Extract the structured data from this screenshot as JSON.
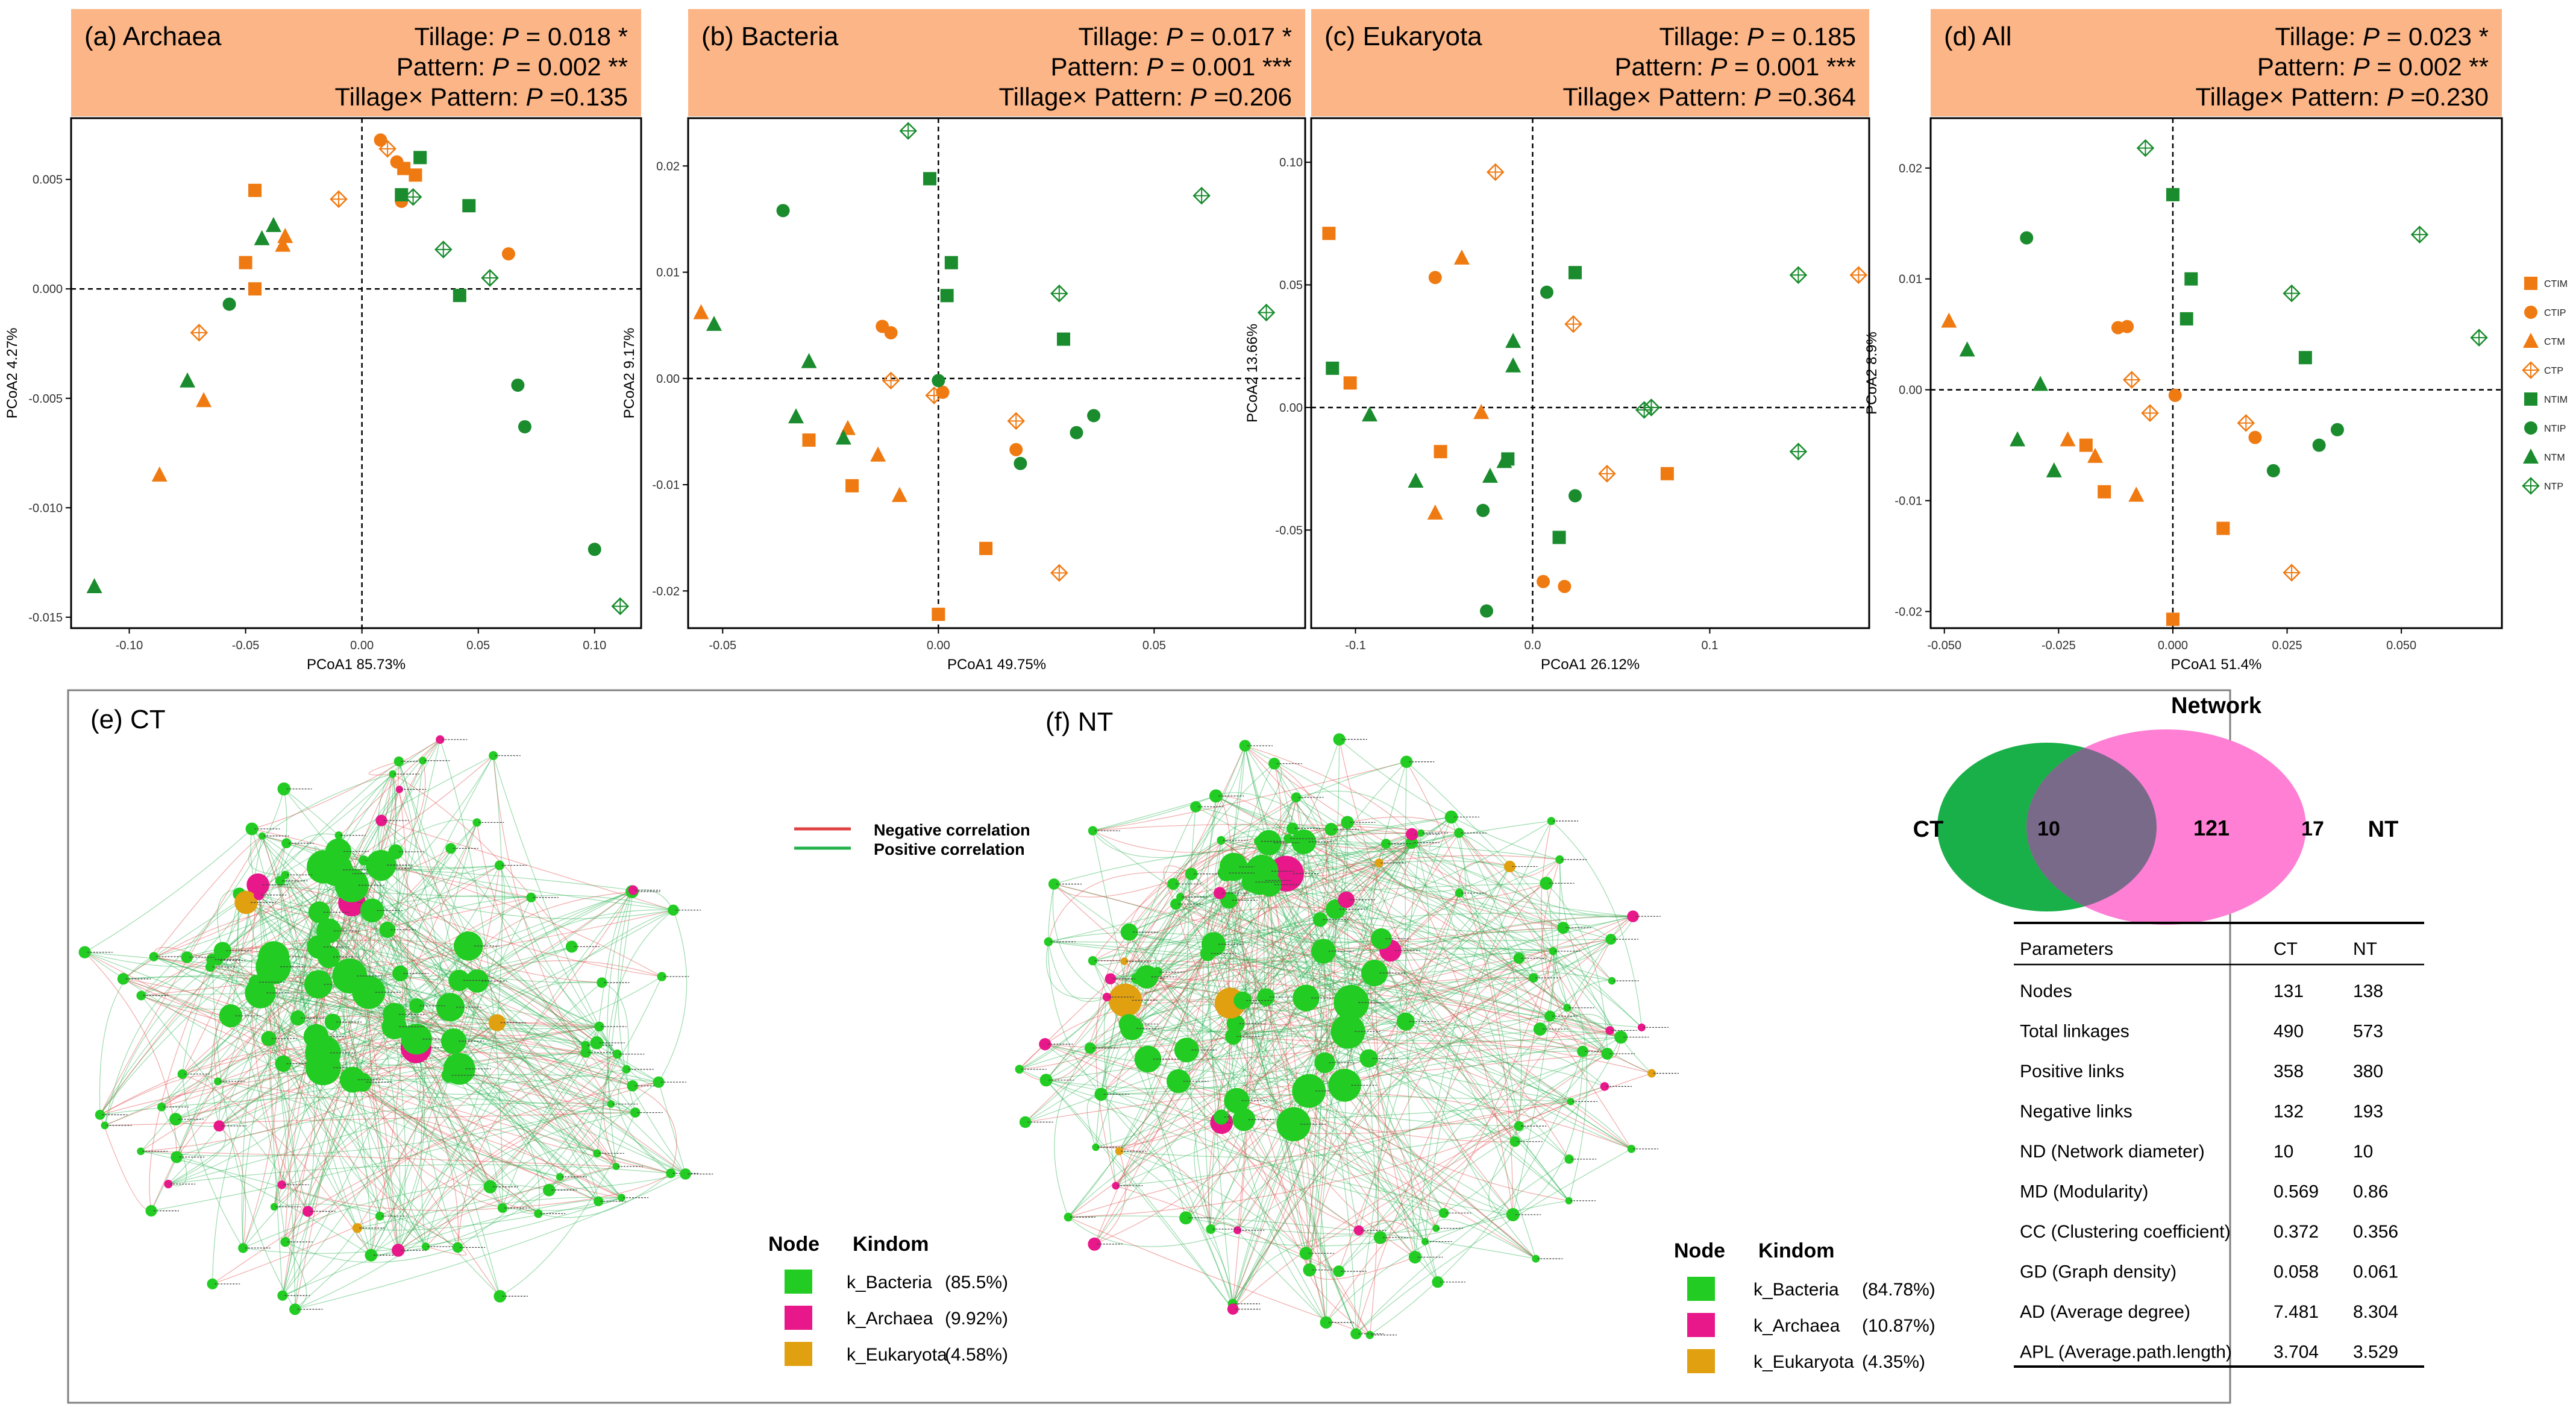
{
  "colors": {
    "ct": "#f07a12",
    "nt": "#1a8c2e",
    "header_bg": "#fcb586",
    "bacteria_node": "#22cc22",
    "archaea_node": "#e8178a",
    "eukaryota_node": "#e0a010",
    "neg_edge": "#e04040",
    "pos_edge": "#22b04a",
    "venn_ct": "#19b04a",
    "venn_nt": "#ff7fd4",
    "venn_overlap": "#7a6a8a"
  },
  "pcoa_legend": [
    "CTIM",
    "CTIP",
    "CTM",
    "CTP",
    "NTIM",
    "NTIP",
    "NTM",
    "NTP"
  ],
  "chart_data": [
    {
      "type": "scatter",
      "panel": "(a) Archaea",
      "stats": [
        "Tillage: P = 0.018 *",
        "Pattern: P = 0.002 **",
        "Tillage× Pattern: P =0.135"
      ],
      "xlabel": "PCoA1 85.73%",
      "ylabel": "PCoA2 4.27%",
      "xlim": [
        -0.125,
        0.12
      ],
      "ylim": [
        -0.0155,
        0.0078
      ],
      "xticks": [
        -0.1,
        -0.05,
        0.0,
        0.05,
        0.1
      ],
      "xtick_labels": [
        "-0.10",
        "-0.05",
        "0.00",
        "0.05",
        "0.10"
      ],
      "yticks": [
        -0.015,
        -0.01,
        -0.005,
        0.0,
        0.005
      ],
      "ytick_labels": [
        "-0.015",
        "-0.010",
        "-0.005",
        "0.000",
        "0.005"
      ],
      "points": [
        {
          "g": "CTIM",
          "x": -0.046,
          "y": 0.0045
        },
        {
          "g": "CTIM",
          "x": -0.05,
          "y": 0.0012
        },
        {
          "g": "CTIM",
          "x": -0.046,
          "y": 0.0
        },
        {
          "g": "CTIM",
          "x": 0.018,
          "y": 0.0055
        },
        {
          "g": "CTIM",
          "x": 0.023,
          "y": 0.0052
        },
        {
          "g": "CTIP",
          "x": 0.008,
          "y": 0.0068
        },
        {
          "g": "CTIP",
          "x": 0.015,
          "y": 0.0058
        },
        {
          "g": "CTIP",
          "x": 0.017,
          "y": 0.004
        },
        {
          "g": "CTIP",
          "x": 0.063,
          "y": 0.0016
        },
        {
          "g": "CTM",
          "x": -0.033,
          "y": 0.0024
        },
        {
          "g": "CTM",
          "x": -0.034,
          "y": 0.002
        },
        {
          "g": "CTM",
          "x": -0.068,
          "y": -0.0051
        },
        {
          "g": "CTM",
          "x": -0.087,
          "y": -0.0085
        },
        {
          "g": "CTP",
          "x": -0.01,
          "y": 0.0041
        },
        {
          "g": "CTP",
          "x": 0.011,
          "y": 0.0064
        },
        {
          "g": "CTP",
          "x": -0.07,
          "y": -0.002
        },
        {
          "g": "NTIM",
          "x": 0.025,
          "y": 0.006
        },
        {
          "g": "NTIM",
          "x": 0.017,
          "y": 0.0043
        },
        {
          "g": "NTIM",
          "x": 0.046,
          "y": 0.0038
        },
        {
          "g": "NTIM",
          "x": 0.042,
          "y": -0.0003
        },
        {
          "g": "NTIP",
          "x": -0.057,
          "y": -0.0007
        },
        {
          "g": "NTIP",
          "x": 0.067,
          "y": -0.0044
        },
        {
          "g": "NTIP",
          "x": 0.07,
          "y": -0.0063
        },
        {
          "g": "NTIP",
          "x": 0.1,
          "y": -0.0119
        },
        {
          "g": "NTM",
          "x": -0.043,
          "y": 0.0023
        },
        {
          "g": "NTM",
          "x": -0.038,
          "y": 0.0029
        },
        {
          "g": "NTM",
          "x": -0.075,
          "y": -0.0042
        },
        {
          "g": "NTM",
          "x": -0.115,
          "y": -0.0136
        },
        {
          "g": "NTP",
          "x": 0.022,
          "y": 0.0042
        },
        {
          "g": "NTP",
          "x": 0.035,
          "y": 0.0018
        },
        {
          "g": "NTP",
          "x": 0.055,
          "y": 0.0005
        },
        {
          "g": "NTP",
          "x": 0.111,
          "y": -0.0145
        }
      ]
    },
    {
      "type": "scatter",
      "panel": "(b) Bacteria",
      "stats": [
        "Tillage: P = 0.017 *",
        "Pattern: P = 0.001 ***",
        "Tillage× Pattern: P =0.206"
      ],
      "xlabel": "PCoA1 49.75%",
      "ylabel": "PCoA2 9.17%",
      "xlim": [
        -0.058,
        0.085
      ],
      "ylim": [
        -0.0235,
        0.0245
      ],
      "xticks": [
        -0.05,
        0.0,
        0.05
      ],
      "xtick_labels": [
        "-0.05",
        "0.00",
        "0.05"
      ],
      "yticks": [
        -0.02,
        -0.01,
        0.0,
        0.01,
        0.02
      ],
      "ytick_labels": [
        "-0.02",
        "-0.01",
        "0.00",
        "0.01",
        "0.02"
      ],
      "points": [
        {
          "g": "CTIM",
          "x": -0.03,
          "y": -0.0058
        },
        {
          "g": "CTIM",
          "x": -0.02,
          "y": -0.0101
        },
        {
          "g": "CTIM",
          "x": 0.0,
          "y": -0.0222
        },
        {
          "g": "CTIM",
          "x": 0.011,
          "y": -0.016
        },
        {
          "g": "CTIP",
          "x": -0.013,
          "y": 0.0049
        },
        {
          "g": "CTIP",
          "x": -0.011,
          "y": 0.0043
        },
        {
          "g": "CTIP",
          "x": 0.018,
          "y": -0.0067
        },
        {
          "g": "CTIP",
          "x": 0.001,
          "y": -0.0013
        },
        {
          "g": "CTM",
          "x": -0.055,
          "y": 0.0062
        },
        {
          "g": "CTM",
          "x": -0.021,
          "y": -0.0047
        },
        {
          "g": "CTM",
          "x": -0.014,
          "y": -0.0072
        },
        {
          "g": "CTM",
          "x": -0.009,
          "y": -0.011
        },
        {
          "g": "CTP",
          "x": -0.011,
          "y": -0.0002
        },
        {
          "g": "CTP",
          "x": -0.001,
          "y": -0.0016
        },
        {
          "g": "CTP",
          "x": 0.018,
          "y": -0.004
        },
        {
          "g": "CTP",
          "x": 0.028,
          "y": -0.0183
        },
        {
          "g": "NTIM",
          "x": -0.002,
          "y": 0.0188
        },
        {
          "g": "NTIM",
          "x": 0.003,
          "y": 0.0109
        },
        {
          "g": "NTIM",
          "x": 0.002,
          "y": 0.0078
        },
        {
          "g": "NTIM",
          "x": 0.029,
          "y": 0.0037
        },
        {
          "g": "NTIP",
          "x": -0.036,
          "y": 0.0158
        },
        {
          "g": "NTIP",
          "x": 0.0,
          "y": -0.0002
        },
        {
          "g": "NTIP",
          "x": 0.019,
          "y": -0.008
        },
        {
          "g": "NTIP",
          "x": 0.032,
          "y": -0.0051
        },
        {
          "g": "NTIP",
          "x": 0.036,
          "y": -0.0035
        },
        {
          "g": "NTM",
          "x": -0.052,
          "y": 0.0051
        },
        {
          "g": "NTM",
          "x": -0.03,
          "y": 0.0016
        },
        {
          "g": "NTM",
          "x": -0.033,
          "y": -0.0036
        },
        {
          "g": "NTM",
          "x": -0.022,
          "y": -0.0056
        },
        {
          "g": "NTP",
          "x": -0.007,
          "y": 0.0233
        },
        {
          "g": "NTP",
          "x": 0.028,
          "y": 0.008
        },
        {
          "g": "NTP",
          "x": 0.061,
          "y": 0.0172
        },
        {
          "g": "NTP",
          "x": 0.076,
          "y": 0.0062
        }
      ]
    },
    {
      "type": "scatter",
      "panel": "(c) Eukaryota",
      "stats": [
        "Tillage: P = 0.185",
        "Pattern: P = 0.001 ***",
        "Tillage× Pattern: P =0.364"
      ],
      "xlabel": "PCoA1 26.12%",
      "ylabel": "PCoA2 13.66%",
      "xlim": [
        -0.125,
        0.19
      ],
      "ylim": [
        -0.09,
        0.118
      ],
      "xticks": [
        -0.1,
        0.0,
        0.1
      ],
      "xtick_labels": [
        "-0.1",
        "0.0",
        "0.1"
      ],
      "yticks": [
        -0.05,
        0.0,
        0.05,
        0.1
      ],
      "ytick_labels": [
        "-0.05",
        "0.00",
        "0.05",
        "0.10"
      ],
      "points": [
        {
          "g": "CTIM",
          "x": -0.115,
          "y": 0.071
        },
        {
          "g": "CTIM",
          "x": -0.103,
          "y": 0.01
        },
        {
          "g": "CTIM",
          "x": -0.052,
          "y": -0.018
        },
        {
          "g": "CTIM",
          "x": 0.076,
          "y": -0.027
        },
        {
          "g": "CTIP",
          "x": -0.055,
          "y": 0.053
        },
        {
          "g": "CTIP",
          "x": 0.006,
          "y": -0.071
        },
        {
          "g": "CTIP",
          "x": 0.018,
          "y": -0.073
        },
        {
          "g": "CTM",
          "x": -0.04,
          "y": 0.061
        },
        {
          "g": "CTM",
          "x": -0.029,
          "y": -0.002
        },
        {
          "g": "CTM",
          "x": -0.055,
          "y": -0.043
        },
        {
          "g": "CTP",
          "x": -0.021,
          "y": 0.096
        },
        {
          "g": "CTP",
          "x": 0.023,
          "y": 0.034
        },
        {
          "g": "CTP",
          "x": 0.042,
          "y": -0.027
        },
        {
          "g": "CTP",
          "x": 0.184,
          "y": 0.054
        },
        {
          "g": "NTIM",
          "x": -0.113,
          "y": 0.016
        },
        {
          "g": "NTIM",
          "x": 0.024,
          "y": 0.055
        },
        {
          "g": "NTIM",
          "x": -0.014,
          "y": -0.021
        },
        {
          "g": "NTIM",
          "x": 0.015,
          "y": -0.053
        },
        {
          "g": "NTIP",
          "x": 0.008,
          "y": 0.047
        },
        {
          "g": "NTIP",
          "x": -0.028,
          "y": -0.042
        },
        {
          "g": "NTIP",
          "x": 0.024,
          "y": -0.036
        },
        {
          "g": "NTIP",
          "x": -0.026,
          "y": -0.083
        },
        {
          "g": "NTM",
          "x": -0.092,
          "y": -0.003
        },
        {
          "g": "NTM",
          "x": -0.066,
          "y": -0.03
        },
        {
          "g": "NTM",
          "x": -0.011,
          "y": 0.027
        },
        {
          "g": "NTM",
          "x": -0.011,
          "y": 0.017
        },
        {
          "g": "NTM",
          "x": -0.016,
          "y": -0.022
        },
        {
          "g": "NTM",
          "x": -0.024,
          "y": -0.028
        },
        {
          "g": "NTP",
          "x": 0.063,
          "y": -0.001
        },
        {
          "g": "NTP",
          "x": 0.067,
          "y": 0.0
        },
        {
          "g": "NTP",
          "x": 0.15,
          "y": 0.054
        },
        {
          "g": "NTP",
          "x": 0.15,
          "y": -0.018
        }
      ]
    },
    {
      "type": "scatter",
      "panel": "(d) All",
      "stats": [
        "Tillage: P = 0.023 *",
        "Pattern: P = 0.002 **",
        "Tillage× Pattern: P =0.230"
      ],
      "xlabel": "PCoA1 51.4%",
      "ylabel": "PCoA2 8.9%",
      "xlim": [
        -0.053,
        0.072
      ],
      "ylim": [
        -0.0215,
        0.0245
      ],
      "xticks": [
        -0.05,
        -0.025,
        0.0,
        0.025,
        0.05
      ],
      "xtick_labels": [
        "-0.050",
        "-0.025",
        "0.000",
        "0.025",
        "0.050"
      ],
      "yticks": [
        -0.02,
        -0.01,
        0.0,
        0.01,
        0.02
      ],
      "ytick_labels": [
        "-0.02",
        "-0.01",
        "0.00",
        "0.01",
        "0.02"
      ],
      "points": [
        {
          "g": "CTIM",
          "x": -0.019,
          "y": -0.005
        },
        {
          "g": "CTIM",
          "x": -0.015,
          "y": -0.0092
        },
        {
          "g": "CTIM",
          "x": 0.0,
          "y": -0.0207
        },
        {
          "g": "CTIM",
          "x": 0.011,
          "y": -0.0125
        },
        {
          "g": "CTIP",
          "x": -0.012,
          "y": 0.0056
        },
        {
          "g": "CTIP",
          "x": -0.01,
          "y": 0.0057
        },
        {
          "g": "CTIP",
          "x": 0.0005,
          "y": -0.0005
        },
        {
          "g": "CTIP",
          "x": 0.018,
          "y": -0.0043
        },
        {
          "g": "CTM",
          "x": -0.049,
          "y": 0.0062
        },
        {
          "g": "CTM",
          "x": -0.023,
          "y": -0.0045
        },
        {
          "g": "CTM",
          "x": -0.017,
          "y": -0.006
        },
        {
          "g": "CTM",
          "x": -0.008,
          "y": -0.0095
        },
        {
          "g": "CTP",
          "x": -0.009,
          "y": 0.0009
        },
        {
          "g": "CTP",
          "x": -0.005,
          "y": -0.0021
        },
        {
          "g": "CTP",
          "x": 0.016,
          "y": -0.003
        },
        {
          "g": "CTP",
          "x": 0.026,
          "y": -0.0165
        },
        {
          "g": "NTIM",
          "x": 0.0,
          "y": 0.0176
        },
        {
          "g": "NTIM",
          "x": 0.004,
          "y": 0.01
        },
        {
          "g": "NTIM",
          "x": 0.003,
          "y": 0.0064
        },
        {
          "g": "NTIM",
          "x": 0.029,
          "y": 0.0029
        },
        {
          "g": "NTIP",
          "x": -0.032,
          "y": 0.0137
        },
        {
          "g": "NTIP",
          "x": 0.022,
          "y": -0.0073
        },
        {
          "g": "NTIP",
          "x": 0.032,
          "y": -0.005
        },
        {
          "g": "NTIP",
          "x": 0.036,
          "y": -0.0036
        },
        {
          "g": "NTM",
          "x": -0.045,
          "y": 0.0036
        },
        {
          "g": "NTM",
          "x": -0.029,
          "y": 0.0005
        },
        {
          "g": "NTM",
          "x": -0.034,
          "y": -0.0045
        },
        {
          "g": "NTM",
          "x": -0.026,
          "y": -0.0073
        },
        {
          "g": "NTP",
          "x": -0.006,
          "y": 0.0218
        },
        {
          "g": "NTP",
          "x": 0.026,
          "y": 0.0087
        },
        {
          "g": "NTP",
          "x": 0.054,
          "y": 0.014
        },
        {
          "g": "NTP",
          "x": 0.067,
          "y": 0.0047
        }
      ]
    }
  ],
  "networks": [
    {
      "title": "(e) CT",
      "legend_node": "Node",
      "legend_kingdom": "Kindom",
      "kingdoms": [
        {
          "label": "k_Bacteria",
          "pct": "(85.5%)",
          "color_key": "bacteria_node"
        },
        {
          "label": "k_Archaea",
          "pct": "(9.92%)",
          "color_key": "archaea_node"
        },
        {
          "label": "k_Eukaryota",
          "pct": "(4.58%)",
          "color_key": "eukaryota_node"
        }
      ]
    },
    {
      "title": "(f) NT",
      "legend_node": "Node",
      "legend_kingdom": "Kindom",
      "kingdoms": [
        {
          "label": "k_Bacteria",
          "pct": "(84.78%)",
          "color_key": "bacteria_node"
        },
        {
          "label": "k_Archaea",
          "pct": "(10.87%)",
          "color_key": "archaea_node"
        },
        {
          "label": "k_Eukaryota",
          "pct": "(4.35%)",
          "color_key": "eukaryota_node"
        }
      ]
    }
  ],
  "edge_legend": [
    "Negative correlation",
    "Positive correlation"
  ],
  "venn": {
    "title": "Network",
    "left_label": "CT",
    "right_label": "NT",
    "only_ct": "10",
    "shared": "121",
    "only_nt": "17"
  },
  "param_table": {
    "headers": [
      "Parameters",
      "CT",
      "NT"
    ],
    "rows": [
      [
        "Nodes",
        "131",
        "138"
      ],
      [
        "Total linkages",
        "490",
        "573"
      ],
      [
        "Positive links",
        "358",
        "380"
      ],
      [
        "Negative links",
        "132",
        "193"
      ],
      [
        "ND (Network diameter)",
        "10",
        "10"
      ],
      [
        "MD (Modularity)",
        "0.569",
        "0.86"
      ],
      [
        "CC (Clustering coefficient)",
        "0.372",
        "0.356"
      ],
      [
        "GD (Graph density)",
        "0.058",
        "0.061"
      ],
      [
        "AD (Average degree)",
        "7.481",
        "8.304"
      ],
      [
        "APL (Average.path.length)",
        "3.704",
        "3.529"
      ]
    ]
  }
}
